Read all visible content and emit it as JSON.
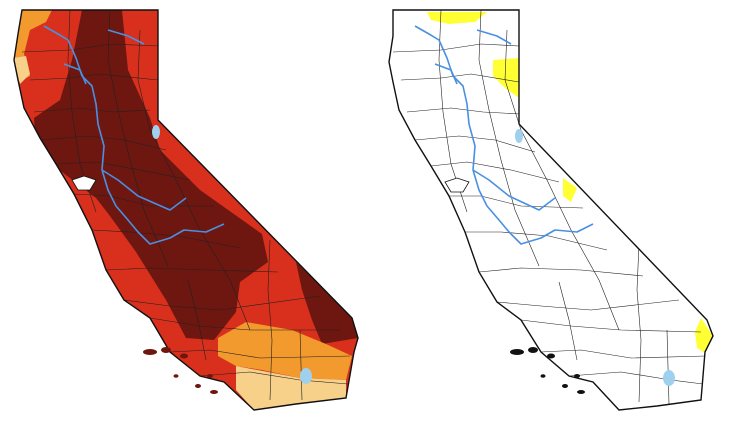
{
  "maps": [
    {
      "id": "left",
      "state": "California",
      "colors": {
        "exceptional": "#6e1610",
        "extreme": "#d8301c",
        "severe": "#f29a2e",
        "moderate": "#f7d08a",
        "abnormally_dry": "#ffff00",
        "none": "#ffffff",
        "river": "#4a90e2",
        "lake": "#9fd0ee",
        "county_line": "#222222"
      }
    },
    {
      "id": "right",
      "state": "California",
      "colors": {
        "abnormally_dry": "#ffff33",
        "none": "#ffffff",
        "river": "#4a90e2",
        "lake": "#9fd0ee",
        "county_line": "#222222"
      }
    }
  ]
}
